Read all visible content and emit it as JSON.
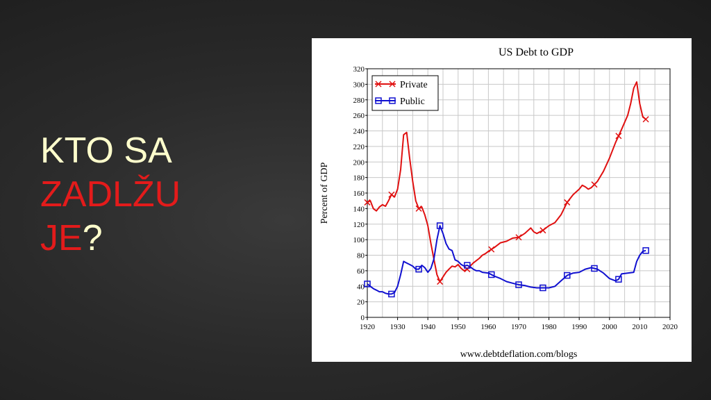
{
  "slide": {
    "title_line1": "KTO SA",
    "title_line2": "ZADLŽU",
    "title_line3_red": "JE",
    "title_line3_white": "?",
    "colors": {
      "title_white": "#ffffcc",
      "title_red": "#e31b1b"
    }
  },
  "chart_data": {
    "type": "line",
    "title": "US Debt to GDP",
    "xlabel": "",
    "ylabel": "Percent of GDP",
    "source": "www.debtdeflation.com/blogs",
    "xlim": [
      1920,
      2020
    ],
    "ylim": [
      0,
      320
    ],
    "x_ticks": [
      1920,
      1930,
      1940,
      1950,
      1960,
      1970,
      1980,
      1990,
      2000,
      2010,
      2020
    ],
    "y_ticks": [
      0,
      20,
      40,
      60,
      80,
      100,
      120,
      140,
      160,
      180,
      200,
      220,
      240,
      260,
      280,
      300,
      320
    ],
    "grid": true,
    "legend_position": "top-left",
    "series": [
      {
        "name": "Private",
        "color": "#e01010",
        "marker": "x",
        "points": [
          [
            1920,
            148
          ],
          [
            1921,
            150
          ],
          [
            1922,
            140
          ],
          [
            1923,
            137
          ],
          [
            1924,
            142
          ],
          [
            1925,
            145
          ],
          [
            1926,
            143
          ],
          [
            1927,
            150
          ],
          [
            1928,
            158
          ],
          [
            1929,
            155
          ],
          [
            1930,
            165
          ],
          [
            1931,
            190
          ],
          [
            1932,
            235
          ],
          [
            1933,
            238
          ],
          [
            1934,
            205
          ],
          [
            1935,
            175
          ],
          [
            1936,
            150
          ],
          [
            1937,
            140
          ],
          [
            1938,
            142
          ],
          [
            1939,
            132
          ],
          [
            1940,
            118
          ],
          [
            1941,
            95
          ],
          [
            1942,
            75
          ],
          [
            1943,
            55
          ],
          [
            1944,
            46
          ],
          [
            1945,
            52
          ],
          [
            1946,
            58
          ],
          [
            1947,
            62
          ],
          [
            1948,
            66
          ],
          [
            1949,
            65
          ],
          [
            1950,
            68
          ],
          [
            1951,
            63
          ],
          [
            1952,
            60
          ],
          [
            1953,
            62
          ],
          [
            1954,
            66
          ],
          [
            1955,
            70
          ],
          [
            1956,
            73
          ],
          [
            1957,
            76
          ],
          [
            1958,
            80
          ],
          [
            1959,
            82
          ],
          [
            1960,
            85
          ],
          [
            1962,
            90
          ],
          [
            1964,
            96
          ],
          [
            1966,
            98
          ],
          [
            1968,
            102
          ],
          [
            1970,
            103
          ],
          [
            1972,
            108
          ],
          [
            1974,
            115
          ],
          [
            1975,
            110
          ],
          [
            1976,
            108
          ],
          [
            1978,
            112
          ],
          [
            1980,
            118
          ],
          [
            1982,
            122
          ],
          [
            1984,
            132
          ],
          [
            1986,
            148
          ],
          [
            1988,
            158
          ],
          [
            1990,
            165
          ],
          [
            1991,
            170
          ],
          [
            1992,
            168
          ],
          [
            1993,
            165
          ],
          [
            1994,
            167
          ],
          [
            1996,
            175
          ],
          [
            1998,
            188
          ],
          [
            2000,
            205
          ],
          [
            2002,
            225
          ],
          [
            2004,
            242
          ],
          [
            2006,
            260
          ],
          [
            2007,
            275
          ],
          [
            2008,
            295
          ],
          [
            2009,
            303
          ],
          [
            2010,
            275
          ],
          [
            2011,
            258
          ],
          [
            2012,
            255
          ]
        ],
        "markers_at": [
          1920,
          1928,
          1937,
          1944,
          1953,
          1961,
          1970,
          1978,
          1986,
          1995,
          2003,
          2012
        ]
      },
      {
        "name": "Public",
        "color": "#1010d0",
        "marker": "square",
        "points": [
          [
            1920,
            43
          ],
          [
            1921,
            40
          ],
          [
            1922,
            37
          ],
          [
            1923,
            35
          ],
          [
            1924,
            33
          ],
          [
            1925,
            33
          ],
          [
            1926,
            31
          ],
          [
            1927,
            30
          ],
          [
            1928,
            30
          ],
          [
            1929,
            32
          ],
          [
            1930,
            40
          ],
          [
            1931,
            55
          ],
          [
            1932,
            72
          ],
          [
            1933,
            70
          ],
          [
            1934,
            68
          ],
          [
            1935,
            66
          ],
          [
            1936,
            62
          ],
          [
            1937,
            62
          ],
          [
            1938,
            67
          ],
          [
            1939,
            64
          ],
          [
            1940,
            58
          ],
          [
            1941,
            63
          ],
          [
            1942,
            75
          ],
          [
            1943,
            100
          ],
          [
            1944,
            118
          ],
          [
            1945,
            108
          ],
          [
            1946,
            95
          ],
          [
            1947,
            88
          ],
          [
            1948,
            86
          ],
          [
            1949,
            74
          ],
          [
            1950,
            72
          ],
          [
            1951,
            68
          ],
          [
            1952,
            66
          ],
          [
            1953,
            67
          ],
          [
            1954,
            65
          ],
          [
            1955,
            62
          ],
          [
            1956,
            60
          ],
          [
            1957,
            60
          ],
          [
            1958,
            58
          ],
          [
            1960,
            57
          ],
          [
            1962,
            53
          ],
          [
            1964,
            50
          ],
          [
            1966,
            46
          ],
          [
            1968,
            44
          ],
          [
            1970,
            42
          ],
          [
            1972,
            41
          ],
          [
            1974,
            39
          ],
          [
            1976,
            38
          ],
          [
            1978,
            38
          ],
          [
            1980,
            38
          ],
          [
            1982,
            40
          ],
          [
            1984,
            47
          ],
          [
            1986,
            54
          ],
          [
            1988,
            57
          ],
          [
            1990,
            58
          ],
          [
            1992,
            62
          ],
          [
            1993,
            63
          ],
          [
            1994,
            64
          ],
          [
            1996,
            62
          ],
          [
            1998,
            57
          ],
          [
            2000,
            50
          ],
          [
            2002,
            47
          ],
          [
            2003,
            49
          ],
          [
            2004,
            56
          ],
          [
            2006,
            57
          ],
          [
            2008,
            58
          ],
          [
            2009,
            72
          ],
          [
            2010,
            80
          ],
          [
            2011,
            85
          ],
          [
            2012,
            86
          ]
        ],
        "markers_at": [
          1920,
          1928,
          1937,
          1944,
          1953,
          1961,
          1970,
          1978,
          1986,
          1995,
          2003,
          2012
        ]
      }
    ]
  }
}
